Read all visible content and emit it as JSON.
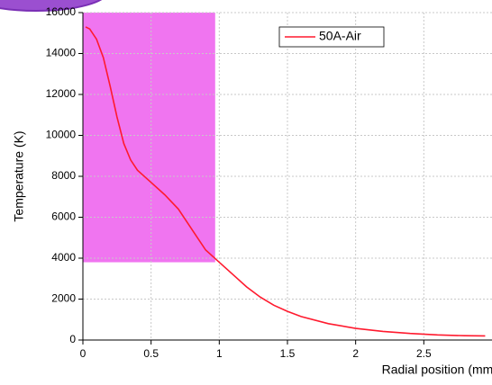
{
  "chart_data": {
    "type": "line",
    "x_label": "Radial position (mm)",
    "y_label": "Temperature (K)",
    "x": [
      0.02,
      0.05,
      0.1,
      0.15,
      0.2,
      0.25,
      0.3,
      0.35,
      0.4,
      0.5,
      0.6,
      0.7,
      0.8,
      0.9,
      1.0,
      1.1,
      1.2,
      1.3,
      1.4,
      1.5,
      1.6,
      1.8,
      2.0,
      2.2,
      2.4,
      2.6,
      2.8,
      2.95
    ],
    "series": [
      {
        "name": "50A-Air",
        "color": "#ff1a2e",
        "values": [
          15300,
          15200,
          14700,
          13800,
          12400,
          10900,
          9600,
          8800,
          8300,
          7700,
          7100,
          6400,
          5400,
          4400,
          3800,
          3200,
          2600,
          2100,
          1700,
          1400,
          1150,
          800,
          570,
          420,
          320,
          250,
          210,
          200
        ]
      }
    ],
    "xlim": [
      0,
      3
    ],
    "ylim": [
      0,
      16000
    ],
    "xticks": [
      0,
      0.5,
      1,
      1.5,
      2,
      2.5
    ],
    "yticks": [
      0,
      2000,
      4000,
      6000,
      8000,
      10000,
      12000,
      14000,
      16000
    ],
    "grid": true,
    "highlight": {
      "x": [
        0,
        0.97
      ],
      "y": [
        3800,
        16000
      ],
      "color": "#f075f0"
    }
  }
}
